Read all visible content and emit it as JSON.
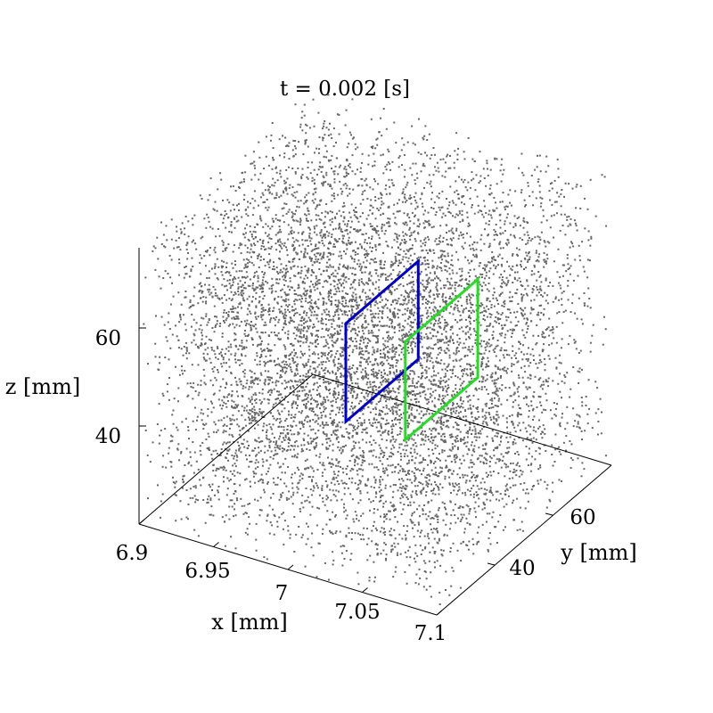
{
  "chart_data": {
    "type": "scatter",
    "projection": "3d",
    "title": "t = 0.002 [s]",
    "xlabel": "x [mm]",
    "ylabel": "y [mm]",
    "zlabel": "z [mm]",
    "x_ticks": [
      "6.9",
      "6.95",
      "7",
      "7.05",
      "7.1"
    ],
    "y_ticks": [
      "40",
      "60"
    ],
    "z_ticks": [
      "40",
      "60"
    ],
    "xlim": [
      6.9,
      7.1
    ],
    "ylim": [
      20,
      80
    ],
    "zlim": [
      20,
      80
    ],
    "point_color": "#666666",
    "point_count": 8000,
    "point_distribution": "random particle cloud filling the whole box",
    "series": [
      {
        "values": [
          {
            "x": 7.0,
            "y": 40,
            "z": 40
          },
          {
            "x": 7.0,
            "y": 65,
            "z": 40
          },
          {
            "x": 7.0,
            "y": 65,
            "z": 60
          },
          {
            "x": 7.0,
            "y": 40,
            "z": 60
          }
        ],
        "color": "#0000cc",
        "shape": "closed rectangle"
      },
      {
        "values": [
          {
            "x": 7.04,
            "y": 40,
            "z": 40
          },
          {
            "x": 7.04,
            "y": 65,
            "z": 40
          },
          {
            "x": 7.04,
            "y": 65,
            "z": 60
          },
          {
            "x": 7.04,
            "y": 40,
            "z": 60
          }
        ],
        "color": "#22dd22",
        "shape": "closed rectangle"
      }
    ],
    "grid": false,
    "legend": "none"
  }
}
